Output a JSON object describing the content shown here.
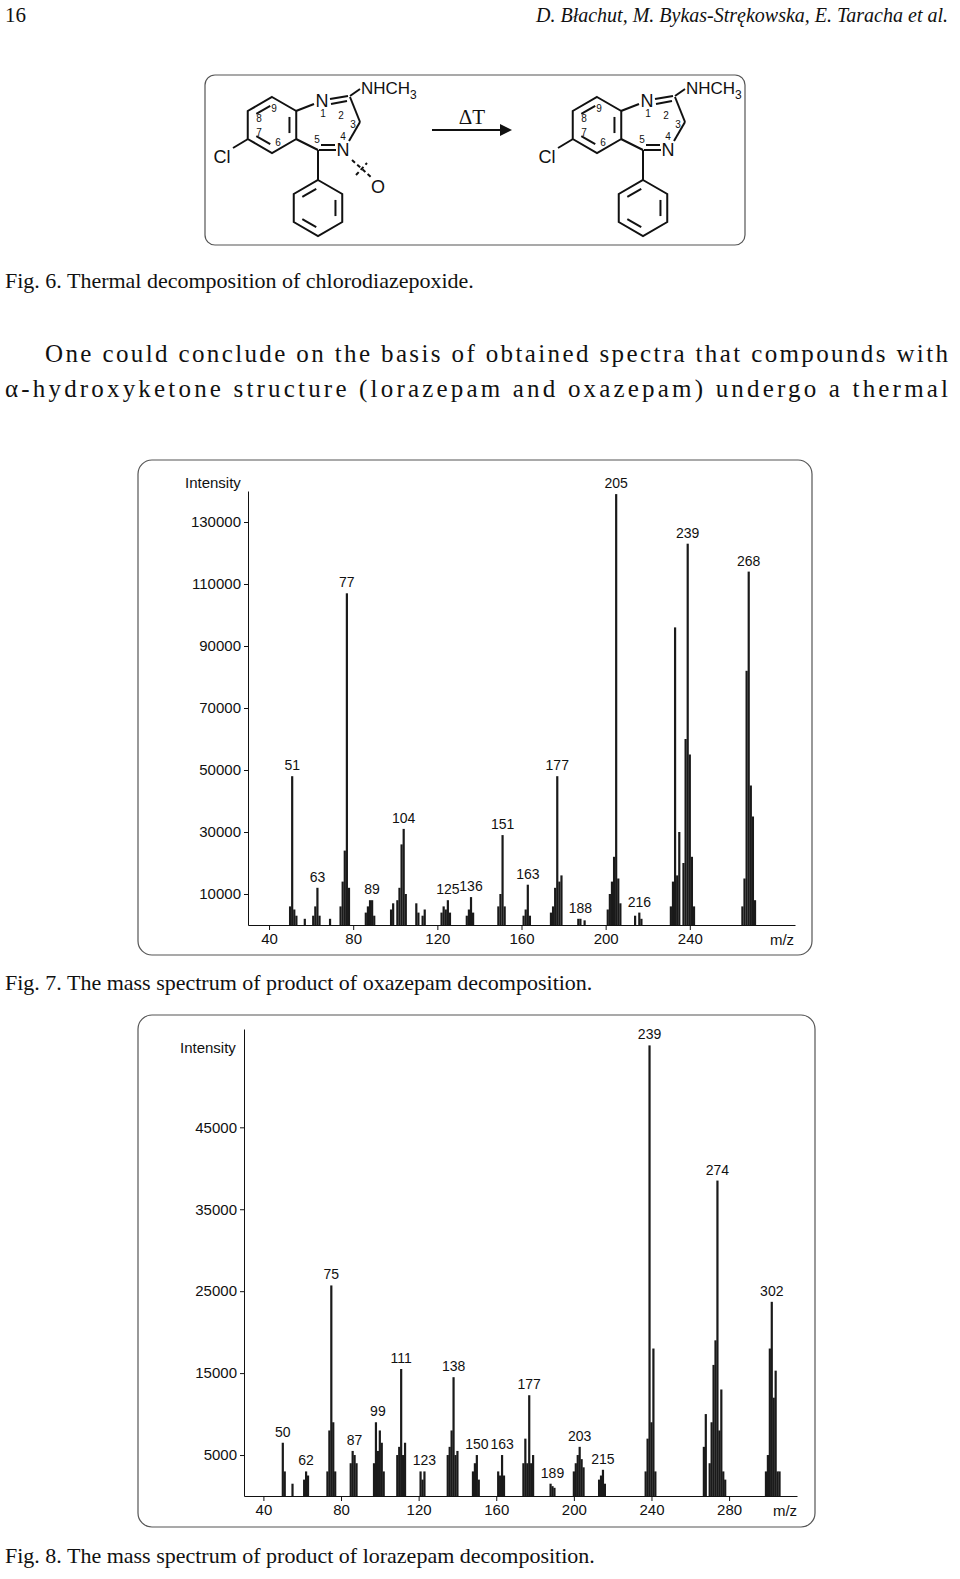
{
  "header": {
    "page_number": "16",
    "authors": "D. Błachut, M. Bykas-Strękowska, E. Taracha et al."
  },
  "scheme": {
    "arrow_label": "ΔT",
    "reactant": {
      "atoms": [
        "N",
        "N",
        "Cl",
        "O"
      ],
      "substituent": {
        "text": "NHCH",
        "subscript": "3"
      },
      "locants": [
        "1",
        "2",
        "3",
        "4",
        "5",
        "6",
        "7",
        "8",
        "9"
      ]
    },
    "product": {
      "atoms": [
        "N",
        "N",
        "Cl"
      ],
      "substituent": {
        "text": "NHCH",
        "subscript": "3"
      },
      "locants": [
        "1",
        "2",
        "3",
        "4",
        "5",
        "6",
        "7",
        "8",
        "9"
      ]
    }
  },
  "figure_6_caption": "Fig. 6. Thermal decomposition of chlorodiazepoxide.",
  "paragraph": [
    "One could conclude on the basis of obtained spectra that compounds with",
    "α-hydroxyketone structure (lorazepam and oxazepam) undergo a thermal"
  ],
  "chart_data": [
    {
      "type": "bar",
      "caption": "Fig. 7. The mass spectrum of product of oxazepam decomposition.",
      "xlabel": "m/z",
      "ylabel": "Intensity",
      "color": "#1a1a1a",
      "x": [
        50,
        51,
        52,
        53,
        57,
        61,
        62,
        63,
        64,
        69,
        74,
        75,
        76,
        77,
        78,
        86,
        87,
        88,
        89,
        90,
        98,
        99,
        101,
        102,
        103,
        104,
        105,
        110,
        111,
        113,
        114,
        122,
        123,
        124,
        125,
        126,
        134,
        135,
        136,
        137,
        149,
        150,
        151,
        152,
        161,
        162,
        163,
        164,
        174,
        175,
        176,
        177,
        178,
        179,
        187,
        188,
        190,
        201,
        202,
        203,
        204,
        205,
        206,
        207,
        214,
        216,
        217,
        231,
        232,
        233,
        234,
        235,
        237,
        238,
        239,
        240,
        241,
        242,
        265,
        266,
        267,
        268,
        269,
        270,
        271
      ],
      "values": [
        6000,
        48000,
        5000,
        3000,
        2000,
        3000,
        6000,
        12000,
        3000,
        2000,
        6000,
        14000,
        24000,
        107000,
        12000,
        4000,
        6000,
        8000,
        8000,
        3000,
        5000,
        7000,
        8000,
        12000,
        26000,
        31000,
        10000,
        7000,
        4000,
        3000,
        5000,
        4000,
        6000,
        5000,
        8000,
        4000,
        3000,
        5000,
        9000,
        4000,
        6000,
        10000,
        29000,
        6000,
        3000,
        5000,
        13000,
        3000,
        4000,
        6000,
        12000,
        48000,
        14000,
        16000,
        2000,
        2000,
        1500,
        5000,
        10000,
        14000,
        22000,
        139000,
        15000,
        7000,
        3000,
        4000,
        2000,
        6000,
        14000,
        96000,
        16000,
        30000,
        20000,
        60000,
        123000,
        55000,
        22000,
        6000,
        6000,
        15000,
        82000,
        114000,
        45000,
        35000,
        8000
      ],
      "xlim": [
        30,
        290
      ],
      "ylim": [
        0,
        140000
      ],
      "xticks": [
        40,
        80,
        120,
        160,
        200,
        240
      ],
      "yticks": [
        10000,
        30000,
        50000,
        70000,
        90000,
        110000,
        130000
      ],
      "annotations": [
        51,
        63,
        77,
        89,
        104,
        125,
        136,
        151,
        163,
        177,
        188,
        205,
        216,
        239,
        268
      ]
    },
    {
      "type": "bar",
      "caption": "Fig. 8. The mass spectrum of product of lorazepam decomposition.",
      "xlabel": "m/z",
      "ylabel": "Intensity",
      "color": "#1a1a1a",
      "x": [
        50,
        51,
        55,
        61,
        62,
        63,
        73,
        74,
        75,
        76,
        77,
        85,
        86,
        87,
        88,
        97,
        98,
        99,
        100,
        101,
        102,
        109,
        110,
        111,
        112,
        113,
        121,
        122,
        123,
        135,
        136,
        137,
        138,
        139,
        140,
        148,
        149,
        150,
        151,
        161,
        162,
        163,
        164,
        174,
        175,
        176,
        177,
        178,
        179,
        188,
        189,
        190,
        200,
        201,
        202,
        203,
        204,
        205,
        213,
        214,
        215,
        216,
        237,
        238,
        239,
        240,
        241,
        242,
        267,
        268,
        270,
        271,
        272,
        273,
        274,
        275,
        276,
        277,
        278,
        299,
        300,
        301,
        302,
        303,
        304,
        305,
        306
      ],
      "values": [
        6500,
        3000,
        1500,
        2000,
        3000,
        2500,
        3000,
        8000,
        25700,
        9000,
        3000,
        4000,
        5500,
        5000,
        4000,
        4000,
        9000,
        5500,
        8000,
        6500,
        3000,
        5000,
        6000,
        15500,
        5000,
        6500,
        3000,
        2000,
        3000,
        5000,
        6000,
        8000,
        14500,
        5000,
        5500,
        3000,
        4000,
        5000,
        2000,
        3000,
        2500,
        5000,
        2500,
        4000,
        7000,
        4000,
        12300,
        4000,
        5000,
        1500,
        1200,
        1000,
        3000,
        4000,
        5000,
        6000,
        4500,
        3500,
        2000,
        2500,
        3200,
        1500,
        3000,
        7000,
        55000,
        9000,
        18000,
        3000,
        6000,
        10000,
        4000,
        9000,
        16000,
        19000,
        38500,
        8000,
        13000,
        3000,
        2000,
        3000,
        5000,
        18000,
        23700,
        12000,
        15300,
        3000,
        3000
      ],
      "xlim": [
        30,
        315
      ],
      "ylim": [
        0,
        57000
      ],
      "xticks": [
        40,
        80,
        120,
        160,
        200,
        240,
        280
      ],
      "yticks": [
        5000,
        15000,
        25000,
        35000,
        45000
      ],
      "annotations": [
        50,
        62,
        75,
        87,
        99,
        111,
        123,
        138,
        150,
        163,
        177,
        189,
        203,
        215,
        239,
        274,
        302
      ]
    }
  ]
}
